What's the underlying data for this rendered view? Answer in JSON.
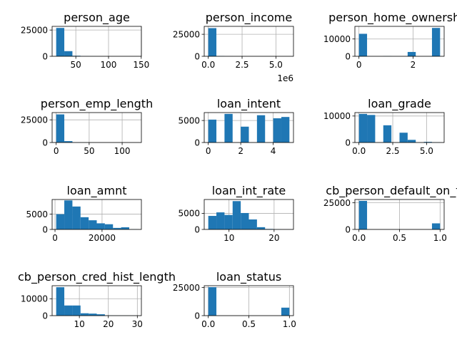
{
  "chart_data": [
    {
      "type": "bar",
      "title": "person_age",
      "bins": [
        [
          20.0,
          32.4,
          27000
        ],
        [
          32.4,
          44.8,
          4900
        ],
        [
          44.8,
          57.2,
          500
        ],
        [
          57.2,
          69.6,
          60
        ],
        [
          69.6,
          82.0,
          10
        ],
        [
          82.0,
          94.4,
          5
        ],
        [
          94.4,
          106.8,
          0
        ],
        [
          106.8,
          119.2,
          0
        ],
        [
          119.2,
          131.6,
          0
        ],
        [
          131.6,
          144.0,
          5
        ]
      ],
      "xlim": [
        13.8,
        150.2
      ],
      "ylim": [
        0,
        28500
      ],
      "xticks": [
        50,
        100,
        150
      ],
      "xtick_labels": [
        "50",
        "100",
        "150"
      ],
      "yticks": [
        0,
        25000
      ],
      "ytick_labels": [
        "0",
        "25000"
      ],
      "offset_label": ""
    },
    {
      "type": "bar",
      "title": "person_income",
      "bins": [
        [
          0,
          600000,
          32000
        ],
        [
          600000,
          1200000,
          300
        ],
        [
          1200000,
          1800000,
          50
        ],
        [
          1800000,
          2400000,
          10
        ],
        [
          2400000,
          3000000,
          5
        ],
        [
          3000000,
          3600000,
          0
        ],
        [
          3600000,
          4200000,
          0
        ],
        [
          4200000,
          4800000,
          0
        ],
        [
          4800000,
          5400000,
          0
        ],
        [
          5400000,
          6000000,
          5
        ]
      ],
      "xlim": [
        -300000,
        6300000
      ],
      "ylim": [
        0,
        34000
      ],
      "xticks": [
        0,
        2500000,
        5000000
      ],
      "xtick_labels": [
        "0.0",
        "2.5",
        "5.0"
      ],
      "yticks": [
        0,
        25000
      ],
      "ytick_labels": [
        "0",
        "25000"
      ],
      "offset_label": "1e6"
    },
    {
      "type": "bar",
      "title": "person_home_ownership",
      "bins": [
        [
          0,
          0.3,
          13000
        ],
        [
          0.3,
          0.6,
          0
        ],
        [
          0.6,
          0.9,
          0
        ],
        [
          0.9,
          1.2,
          100
        ],
        [
          1.2,
          1.5,
          0
        ],
        [
          1.5,
          1.8,
          0
        ],
        [
          1.8,
          2.1,
          2500
        ],
        [
          2.1,
          2.4,
          0
        ],
        [
          2.4,
          2.7,
          0
        ],
        [
          2.7,
          3.0,
          16400
        ]
      ],
      "xlim": [
        -0.15,
        3.15
      ],
      "ylim": [
        0,
        17300
      ],
      "xticks": [
        0,
        2
      ],
      "xtick_labels": [
        "0",
        "2"
      ],
      "yticks": [
        0,
        10000
      ],
      "ytick_labels": [
        "0",
        "10000"
      ],
      "offset_label": ""
    },
    {
      "type": "bar",
      "title": "person_emp_length",
      "bins": [
        [
          0,
          12.3,
          31000
        ],
        [
          12.3,
          24.6,
          1500
        ],
        [
          24.6,
          36.9,
          100
        ],
        [
          36.9,
          49.2,
          10
        ],
        [
          49.2,
          61.5,
          0
        ],
        [
          61.5,
          73.8,
          0
        ],
        [
          73.8,
          86.1,
          0
        ],
        [
          86.1,
          98.4,
          0
        ],
        [
          98.4,
          110.7,
          0
        ],
        [
          110.7,
          123.0,
          5
        ]
      ],
      "xlim": [
        -6.15,
        129.15
      ],
      "ylim": [
        0,
        33000
      ],
      "xticks": [
        0,
        50,
        100
      ],
      "xtick_labels": [
        "0",
        "50",
        "100"
      ],
      "yticks": [
        0,
        25000
      ],
      "ytick_labels": [
        "0",
        "25000"
      ],
      "offset_label": ""
    },
    {
      "type": "bar",
      "title": "loan_intent",
      "bins": [
        [
          0,
          0.5,
          5200
        ],
        [
          0.5,
          1.0,
          0
        ],
        [
          1.0,
          1.5,
          6500
        ],
        [
          1.5,
          2.0,
          0
        ],
        [
          2.0,
          2.5,
          3600
        ],
        [
          2.5,
          3.0,
          0
        ],
        [
          3.0,
          3.5,
          6200
        ],
        [
          3.5,
          4.0,
          0
        ],
        [
          4.0,
          4.5,
          5500
        ],
        [
          4.5,
          5.0,
          5800
        ]
      ],
      "xlim": [
        -0.25,
        5.25
      ],
      "ylim": [
        0,
        6800
      ],
      "xticks": [
        0,
        2,
        4
      ],
      "xtick_labels": [
        "0",
        "2",
        "4"
      ],
      "yticks": [
        0,
        5000
      ],
      "ytick_labels": [
        "0",
        "5000"
      ],
      "offset_label": ""
    },
    {
      "type": "bar",
      "title": "loan_grade",
      "bins": [
        [
          0,
          0.6,
          10800
        ],
        [
          0.6,
          1.2,
          10400
        ],
        [
          1.2,
          1.8,
          0
        ],
        [
          1.8,
          2.4,
          6500
        ],
        [
          2.4,
          3.0,
          0
        ],
        [
          3.0,
          3.6,
          3700
        ],
        [
          3.6,
          4.2,
          1000
        ],
        [
          4.2,
          4.8,
          0
        ],
        [
          4.8,
          5.4,
          240
        ],
        [
          5.4,
          6.0,
          60
        ]
      ],
      "xlim": [
        -0.3,
        6.3
      ],
      "ylim": [
        0,
        11300
      ],
      "xticks": [
        0,
        2.5,
        5
      ],
      "xtick_labels": [
        "0.0",
        "2.5",
        "5.0"
      ],
      "yticks": [
        0,
        10000
      ],
      "ytick_labels": [
        "0",
        "10000"
      ],
      "offset_label": ""
    },
    {
      "type": "bar",
      "title": "loan_amnt",
      "bins": [
        [
          500,
          3950,
          5000
        ],
        [
          3950,
          7400,
          9500
        ],
        [
          7400,
          10850,
          7500
        ],
        [
          10850,
          14300,
          4000
        ],
        [
          14300,
          17750,
          3000
        ],
        [
          17750,
          21200,
          2000
        ],
        [
          21200,
          24650,
          1700
        ],
        [
          24650,
          28100,
          500
        ],
        [
          28100,
          31550,
          700
        ],
        [
          31550,
          35000,
          50
        ]
      ],
      "xlim": [
        -1225,
        36725
      ],
      "ylim": [
        0,
        9800
      ],
      "xticks": [
        0,
        20000
      ],
      "xtick_labels": [
        "0",
        "20000"
      ],
      "yticks": [
        0,
        5000
      ],
      "ytick_labels": [
        "0",
        "5000"
      ],
      "offset_label": ""
    },
    {
      "type": "bar",
      "title": "loan_int_rate",
      "bins": [
        [
          5.4,
          7.2,
          4200
        ],
        [
          7.2,
          9.0,
          5300
        ],
        [
          9.0,
          10.8,
          4500
        ],
        [
          10.8,
          12.6,
          8800
        ],
        [
          12.6,
          14.4,
          5100
        ],
        [
          14.4,
          16.2,
          3100
        ],
        [
          16.2,
          18.0,
          700
        ],
        [
          18.0,
          19.8,
          150
        ],
        [
          19.8,
          21.6,
          40
        ],
        [
          21.6,
          23.4,
          10
        ]
      ],
      "xlim": [
        4.5,
        24.3
      ],
      "ylim": [
        0,
        9300
      ],
      "xticks": [
        10,
        20
      ],
      "xtick_labels": [
        "10",
        "20"
      ],
      "yticks": [
        0,
        5000
      ],
      "ytick_labels": [
        "0",
        "5000"
      ],
      "offset_label": ""
    },
    {
      "type": "bar",
      "title": "cb_person_default_on_file",
      "bins": [
        [
          0,
          0.1,
          26800
        ],
        [
          0.1,
          0.2,
          0
        ],
        [
          0.2,
          0.3,
          0
        ],
        [
          0.3,
          0.4,
          0
        ],
        [
          0.4,
          0.5,
          0
        ],
        [
          0.5,
          0.6,
          0
        ],
        [
          0.6,
          0.7,
          0
        ],
        [
          0.7,
          0.8,
          0
        ],
        [
          0.8,
          0.9,
          0
        ],
        [
          0.9,
          1.0,
          5700
        ]
      ],
      "xlim": [
        -0.05,
        1.05
      ],
      "ylim": [
        0,
        28100
      ],
      "xticks": [
        0,
        0.5,
        1.0
      ],
      "xtick_labels": [
        "0.0",
        "0.5",
        "1.0"
      ],
      "yticks": [
        0,
        25000
      ],
      "ytick_labels": [
        "0",
        "25000"
      ],
      "offset_label": ""
    },
    {
      "type": "bar",
      "title": "cb_person_cred_hist_length",
      "bins": [
        [
          2,
          4.8,
          16800
        ],
        [
          4.8,
          7.6,
          6000
        ],
        [
          7.6,
          10.4,
          6000
        ],
        [
          10.4,
          13.2,
          1400
        ],
        [
          13.2,
          16.0,
          1200
        ],
        [
          16.0,
          18.8,
          800
        ],
        [
          18.8,
          21.6,
          100
        ],
        [
          21.6,
          24.4,
          80
        ],
        [
          24.4,
          27.2,
          60
        ],
        [
          27.2,
          30.0,
          40
        ]
      ],
      "xlim": [
        0.6,
        31.4
      ],
      "ylim": [
        0,
        17700
      ],
      "xticks": [
        10,
        20,
        30
      ],
      "xtick_labels": [
        "10",
        "20",
        "30"
      ],
      "yticks": [
        0,
        10000
      ],
      "ytick_labels": [
        "0",
        "10000"
      ],
      "offset_label": ""
    },
    {
      "type": "bar",
      "title": "loan_status",
      "bins": [
        [
          0,
          0.1,
          25300
        ],
        [
          0.1,
          0.2,
          0
        ],
        [
          0.2,
          0.3,
          0
        ],
        [
          0.3,
          0.4,
          0
        ],
        [
          0.4,
          0.5,
          0
        ],
        [
          0.5,
          0.6,
          0
        ],
        [
          0.6,
          0.7,
          0
        ],
        [
          0.7,
          0.8,
          0
        ],
        [
          0.8,
          0.9,
          0
        ],
        [
          0.9,
          1.0,
          7100
        ]
      ],
      "xlim": [
        -0.05,
        1.05
      ],
      "ylim": [
        0,
        26600
      ],
      "xticks": [
        0,
        0.5,
        1.0
      ],
      "xtick_labels": [
        "0.0",
        "0.5",
        "1.0"
      ],
      "yticks": [
        0,
        25000
      ],
      "ytick_labels": [
        "0",
        "25000"
      ],
      "offset_label": ""
    }
  ]
}
